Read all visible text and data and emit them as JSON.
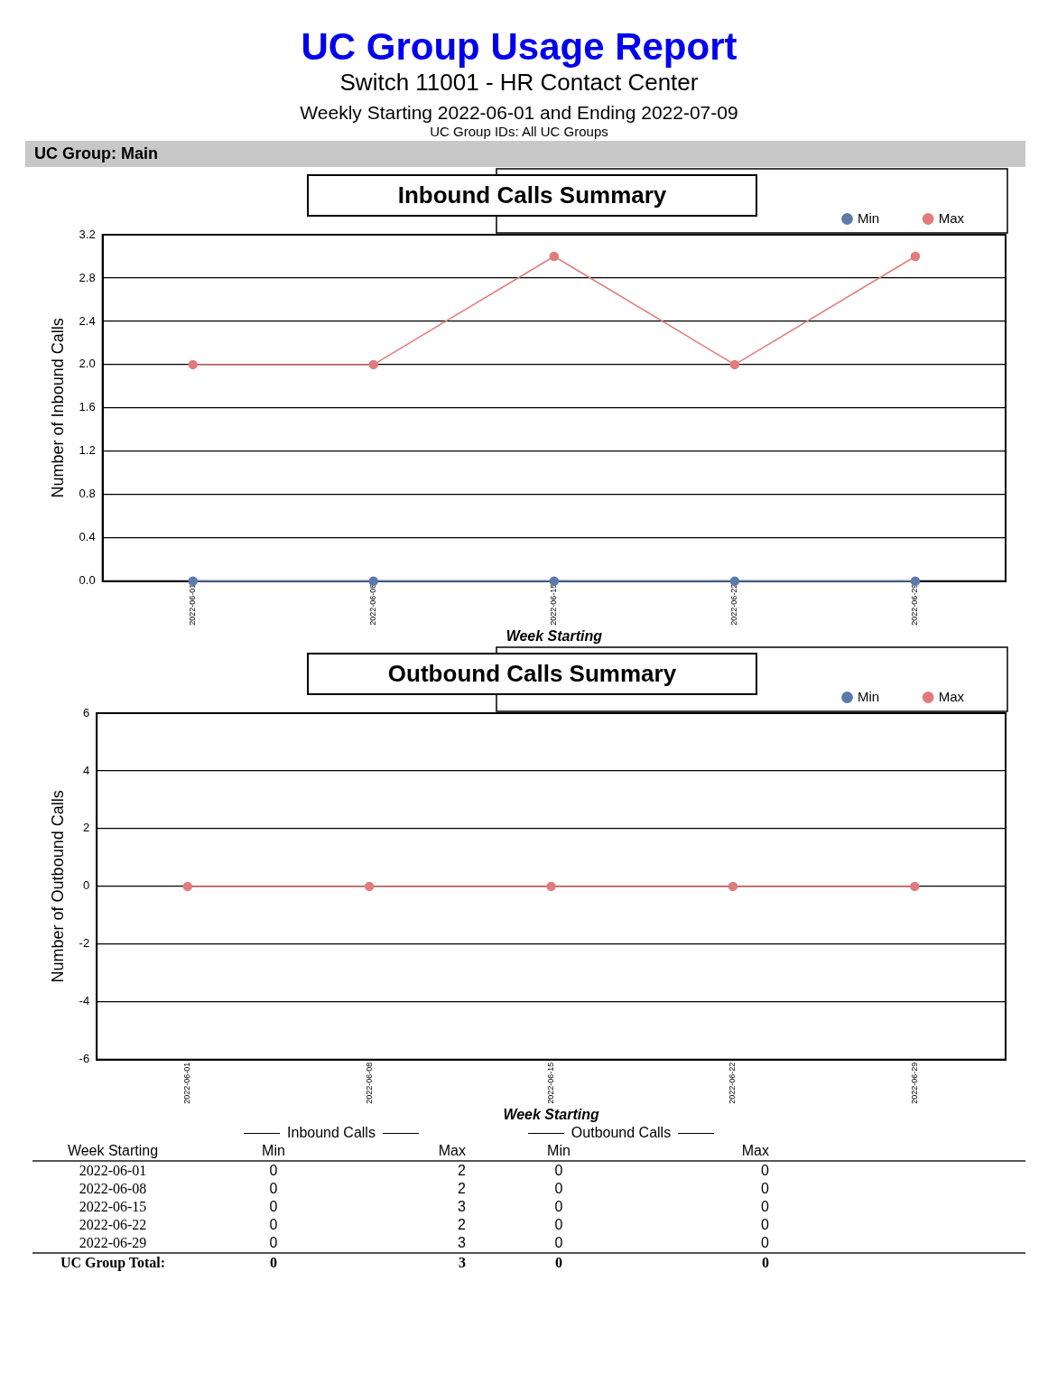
{
  "chart_data": [
    {
      "type": "line",
      "title": "Inbound Calls Summary",
      "xlabel": "Week Starting",
      "ylabel": "Number of Inbound Calls",
      "annotations": [
        "UC Group Usage Report",
        "Switch 11001 - HR Contact Center",
        "Weekly Starting 2022-06-01 and Ending 2022-07-09",
        "UC Group IDs:  All UC Groups",
        "UC Group: Main"
      ],
      "categories": [
        "2022-06-01",
        "2022-06-08",
        "2022-06-15",
        "2022-06-22",
        "2022-06-29"
      ],
      "series": [
        {
          "name": "Min",
          "color": "#5b7bad",
          "values": [
            0,
            0,
            0,
            0,
            0
          ]
        },
        {
          "name": "Max",
          "color": "#e07c7c",
          "values": [
            2,
            2,
            3,
            2,
            3
          ]
        }
      ],
      "ylim": [
        0,
        3.2
      ],
      "yticks": [
        {
          "value": 0,
          "label": "0.0"
        },
        0.4,
        0.8,
        1.2,
        1.6,
        {
          "value": 2,
          "label": "2.0"
        },
        2.4,
        2.8,
        3.2
      ],
      "grid": "y",
      "legend": "top right",
      "marker": "circle",
      "line_style": "solid"
    },
    {
      "type": "line",
      "title": "Outbound Calls Summary",
      "xlabel": "Week Starting",
      "ylabel": "Number of Outbound Calls",
      "annotations": [
        "Inbound Calls",
        "Outbound Calls",
        "Week Starting",
        "Min",
        "Max",
        "Min",
        "Max",
        "2022-06-01",
        "0",
        "2",
        "0",
        "0",
        "2022-06-08",
        "0",
        "2",
        "0",
        "0",
        "2022-06-15",
        "0",
        "3",
        "0",
        "0",
        "2022-06-22",
        "0",
        "2",
        "0",
        "0",
        "2022-06-29",
        "0",
        "3",
        "0",
        "0",
        "UC Group Total:",
        "0",
        "3",
        "0",
        "0"
      ],
      "categories": [
        "2022-06-01",
        "2022-06-08",
        "2022-06-15",
        "2022-06-22",
        "2022-06-29"
      ],
      "series": [
        {
          "name": "Min",
          "color": "#5b7bad",
          "values": [
            null,
            null,
            null,
            null,
            null
          ]
        },
        {
          "name": "Max",
          "color": "#e07c7c",
          "values": [
            0,
            0,
            0,
            0,
            0
          ]
        }
      ],
      "ylim": [
        -6,
        6
      ],
      "yticks": [
        -6,
        -4,
        -2,
        0,
        2,
        4,
        6
      ],
      "grid": "y",
      "legend": "top right",
      "marker": "circle",
      "line_style": "solid"
    }
  ]
}
